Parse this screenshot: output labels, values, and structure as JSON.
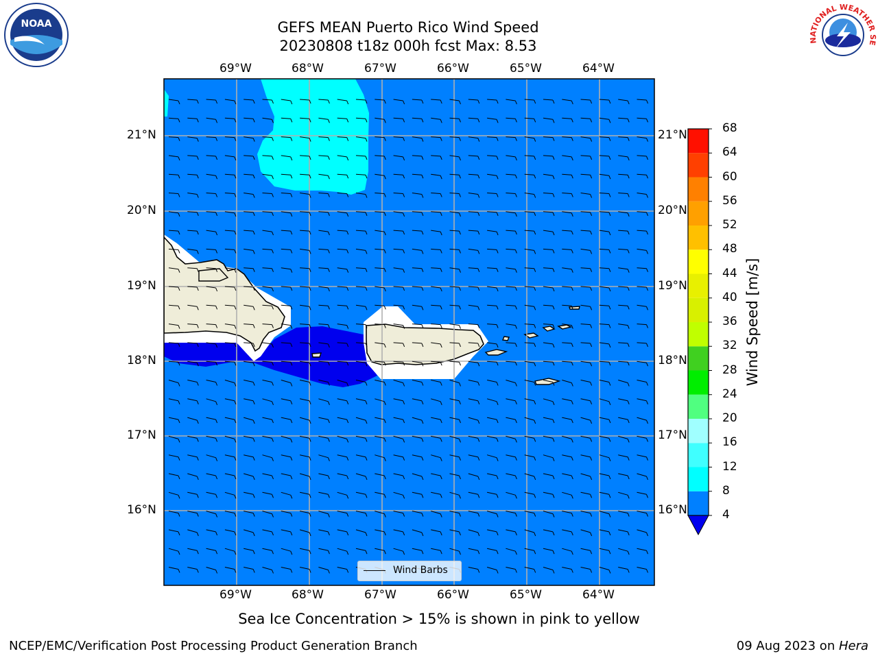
{
  "title": {
    "line1": "GEFS MEAN Puerto Rico Wind Speed",
    "line2": "20230808 t18z 000h fcst   Max: 8.53"
  },
  "map": {
    "lon_labels": [
      "69°W",
      "68°W",
      "67°W",
      "66°W",
      "65°W",
      "64°W"
    ],
    "lat_labels": [
      "21°N",
      "20°N",
      "19°N",
      "18°N",
      "17°N",
      "16°N"
    ],
    "lon_range": [
      -70.0,
      -63.25
    ],
    "lat_range": [
      15.0,
      21.75
    ],
    "gridlines": true,
    "land_color": "#efedd9",
    "sea_color": "#0080ff",
    "regions": [
      {
        "name": "light-cyan-zone",
        "speed_band": "8-12",
        "color": "#00ffff"
      },
      {
        "name": "dark-blue-zone",
        "speed_band": "below 4",
        "color": "#0000ee"
      }
    ],
    "wind_direction": "easterly"
  },
  "legend": {
    "label": "Wind Barbs"
  },
  "colorbar": {
    "label": "Wind Speed [m/s]",
    "ticks": [
      "68",
      "64",
      "60",
      "56",
      "52",
      "48",
      "44",
      "40",
      "36",
      "32",
      "28",
      "24",
      "20",
      "16",
      "12",
      "8",
      "4"
    ],
    "bands": [
      {
        "from": 4,
        "to": 8,
        "color": "#0080ff"
      },
      {
        "from": 8,
        "to": 12,
        "color": "#00ffff"
      },
      {
        "from": 12,
        "to": 16,
        "color": "#40ffff"
      },
      {
        "from": 16,
        "to": 20,
        "color": "#a0ffff"
      },
      {
        "from": 20,
        "to": 24,
        "color": "#50ff80"
      },
      {
        "from": 24,
        "to": 28,
        "color": "#00ee00"
      },
      {
        "from": 28,
        "to": 32,
        "color": "#40d020"
      },
      {
        "from": 32,
        "to": 36,
        "color": "#c0ff00"
      },
      {
        "from": 36,
        "to": 40,
        "color": "#d8f000"
      },
      {
        "from": 40,
        "to": 44,
        "color": "#e8f000"
      },
      {
        "from": 44,
        "to": 48,
        "color": "#ffff00"
      },
      {
        "from": 48,
        "to": 52,
        "color": "#ffc000"
      },
      {
        "from": 52,
        "to": 56,
        "color": "#ffa000"
      },
      {
        "from": 56,
        "to": 60,
        "color": "#ff8000"
      },
      {
        "from": 60,
        "to": 64,
        "color": "#ff4000"
      },
      {
        "from": 64,
        "to": 68,
        "color": "#ff1000"
      }
    ],
    "under_color": "#0000ee"
  },
  "note": "Sea Ice Concentration > 15% is shown in pink to yellow",
  "footer": {
    "left": "NCEP/EMC/Verification Post Processing Product Generation Branch",
    "date": "09 Aug 2023 on ",
    "machine": "Hera"
  },
  "logos": {
    "noaa_text": "NOAA",
    "nws_text": "NATIONAL WEATHER SERVICE"
  }
}
